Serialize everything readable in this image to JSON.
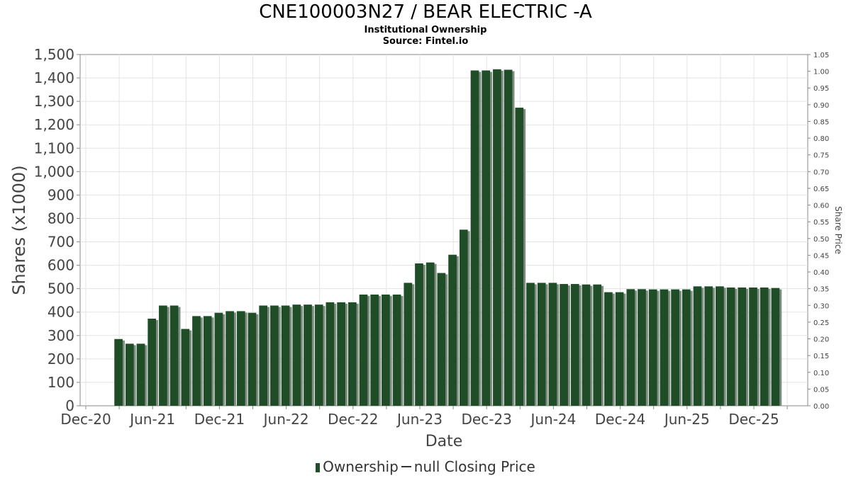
{
  "chart_data": {
    "type": "bar",
    "title": "CNE100003N27 / BEAR ELECTRIC -A",
    "subtitle_lines": [
      "Institutional Ownership",
      "Source: Fintel.io"
    ],
    "xlabel": "Date",
    "ylabel": "Shares (x1000)",
    "y2label": "Share Price",
    "x_ticks": [
      "Dec-20",
      "Jun-21",
      "Dec-21",
      "Jun-22",
      "Dec-22",
      "Jun-23",
      "Dec-23",
      "Jun-24",
      "Dec-24",
      "Jun-25",
      "Dec-25"
    ],
    "ylim": [
      0,
      1500
    ],
    "y_ticks": [
      "0",
      "100",
      "200",
      "300",
      "400",
      "500",
      "600",
      "700",
      "800",
      "900",
      "1,000",
      "1,100",
      "1,200",
      "1,300",
      "1,400",
      "1,500"
    ],
    "y2lim": [
      0,
      1.05
    ],
    "y2_ticks": [
      "0.00",
      "0.05",
      "0.10",
      "0.15",
      "0.20",
      "0.25",
      "0.30",
      "0.35",
      "0.40",
      "0.45",
      "0.50",
      "0.55",
      "0.60",
      "0.65",
      "0.70",
      "0.75",
      "0.80",
      "0.85",
      "0.90",
      "0.95",
      "1.00",
      "1.05"
    ],
    "grid": true,
    "legend_position": "bottom",
    "series": [
      {
        "name": "Ownership",
        "color": "#1f4d28",
        "values": [
          285,
          265,
          265,
          372,
          428,
          428,
          328,
          383,
          383,
          397,
          404,
          404,
          397,
          428,
          428,
          428,
          432,
          432,
          432,
          442,
          442,
          442,
          475,
          475,
          475,
          475,
          525,
          608,
          612,
          567,
          645,
          752,
          1432,
          1432,
          1437,
          1435,
          1273,
          525,
          525,
          525,
          520,
          520,
          518,
          518,
          485,
          485,
          498,
          498,
          497,
          497,
          497,
          497,
          510,
          510,
          510,
          505,
          505,
          505,
          505,
          503
        ]
      }
    ],
    "legend": [
      "Ownership",
      "null Closing Price"
    ]
  }
}
